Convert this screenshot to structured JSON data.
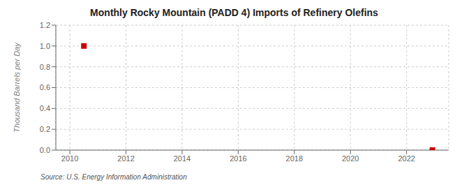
{
  "chart_data": {
    "type": "scatter",
    "title": "Monthly Rocky Mountain (PADD 4) Imports of Refinery Olefins",
    "y_label": "Thousand Barrels per Day",
    "annotations": [
      "Source: U.S. Energy Information Administration"
    ],
    "x": [
      2010.5,
      2022.92
    ],
    "values": [
      1.0,
      0.0
    ],
    "color": "#cc0000",
    "marker": "square",
    "xlim": [
      2009.5,
      2023.5
    ],
    "xticks": [
      2010,
      2012,
      2014,
      2016,
      2018,
      2020,
      2022
    ],
    "ylim": [
      0.0,
      1.2
    ],
    "yticks": [
      {
        "value": 0,
        "label": "0.0"
      },
      0.2,
      0.4,
      0.6,
      0.8,
      {
        "value": 1,
        "label": "1.0"
      },
      1.2
    ],
    "grid": true
  }
}
